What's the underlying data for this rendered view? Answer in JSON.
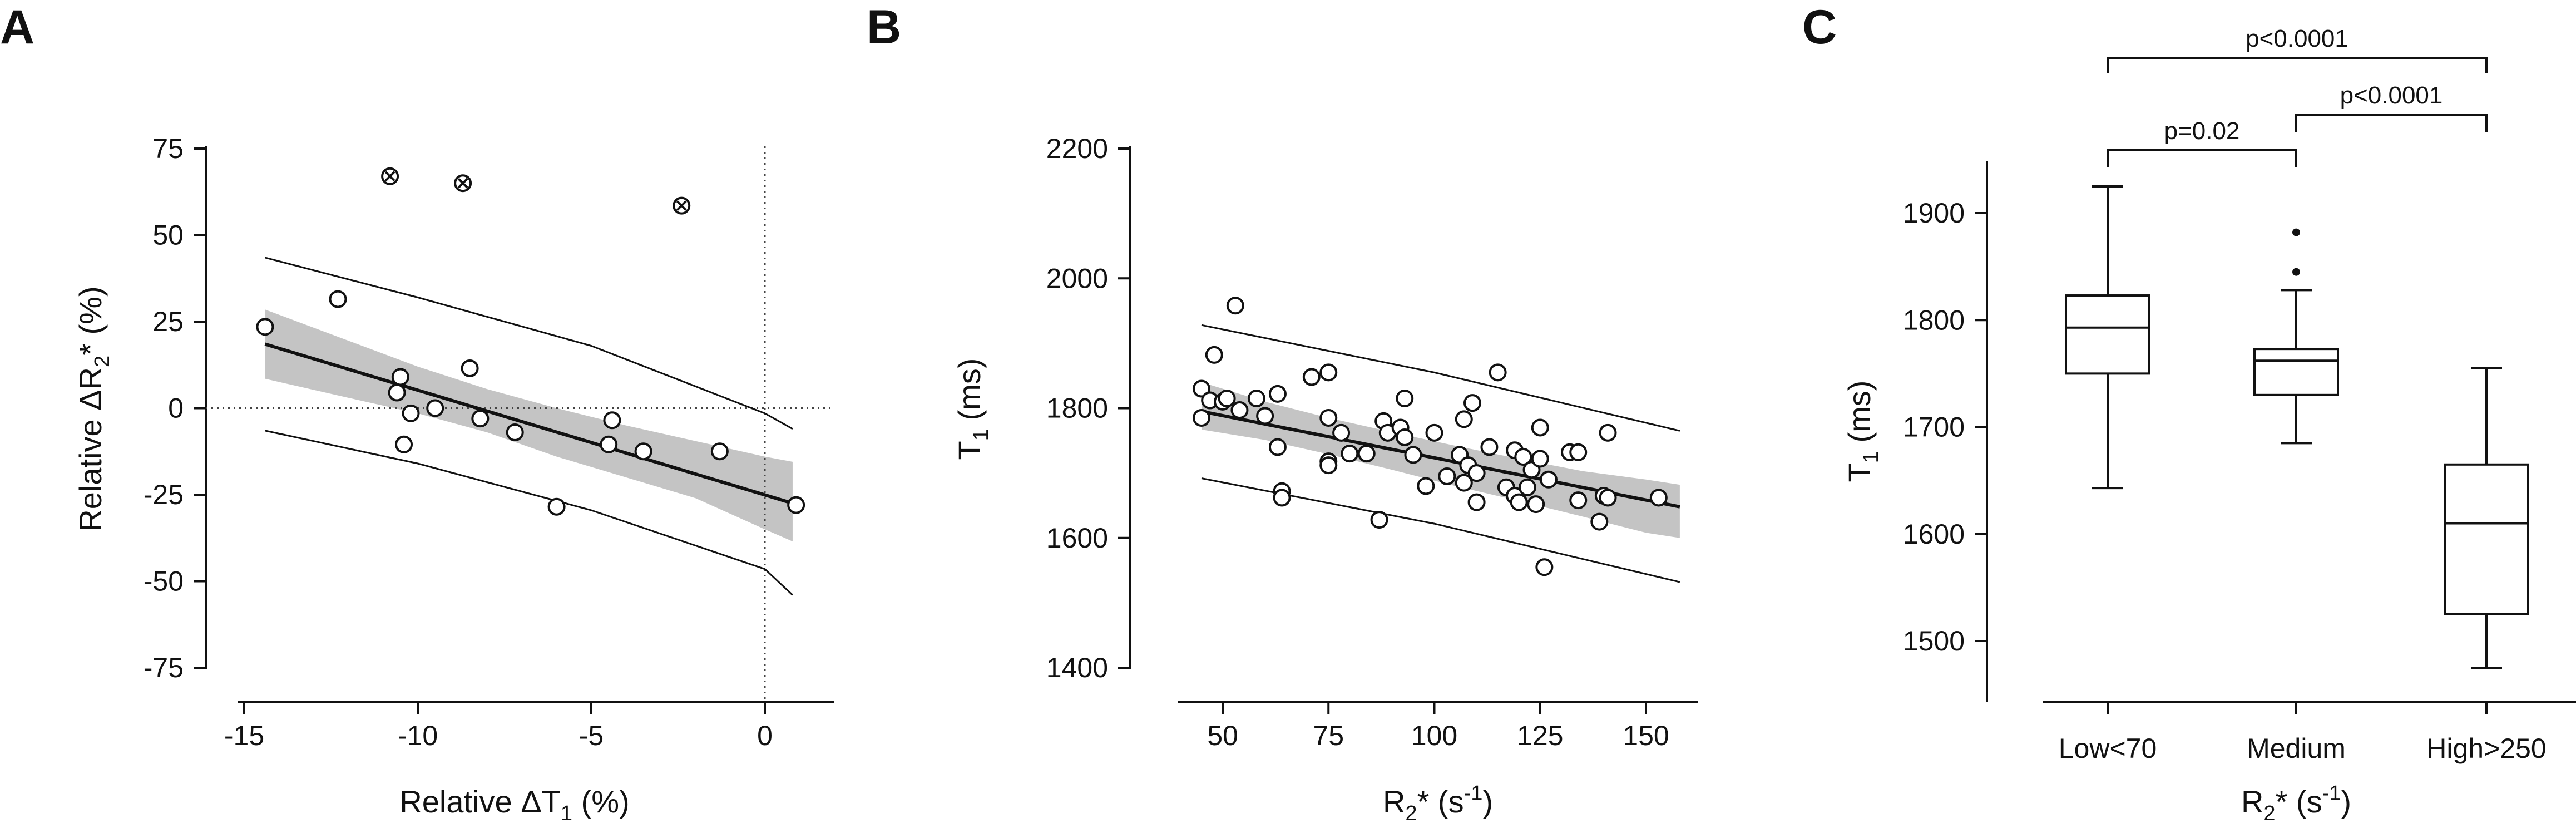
{
  "panels": [
    {
      "letter": "A",
      "x_ticks": [
        "-15",
        "-10",
        "-5",
        "0"
      ],
      "y_ticks": [
        "75",
        "50",
        "25",
        "0",
        "-25",
        "-50",
        "-75"
      ],
      "xlabel": {
        "pre": "Relative ΔT",
        "sub": "1",
        "post": " (%)"
      },
      "ylabel": {
        "pre": "Relative ΔR",
        "sub": "2",
        "post": "* (%)"
      }
    },
    {
      "letter": "B",
      "x_ticks": [
        "50",
        "75",
        "100",
        "125",
        "150"
      ],
      "y_ticks": [
        "2200",
        "2000",
        "1800",
        "1600",
        "1400"
      ],
      "xlabel": {
        "pre": "R",
        "sub": "2",
        "mid": "* (s",
        "sup": "-1",
        "post": ")"
      },
      "ylabel": {
        "pre": "T",
        "sub": "1",
        "post": " (ms)"
      }
    },
    {
      "letter": "C",
      "x_ticks": [
        "Low<70",
        "Medium",
        "High>250"
      ],
      "y_ticks": [
        "1900",
        "1800",
        "1700",
        "1600",
        "1500"
      ],
      "xlabel": {
        "pre": "R",
        "sub": "2",
        "mid": "* (s",
        "sup": "-1",
        "post": ")"
      },
      "ylabel": {
        "pre": "T",
        "sub": "1",
        "post": " (ms)"
      },
      "brackets": [
        {
          "label": "p=0.02"
        },
        {
          "label": "p<0.0001"
        },
        {
          "label": "p<0.0001"
        }
      ]
    }
  ],
  "chart_data": [
    {
      "type": "scatter",
      "panel": "A",
      "xlim": [
        -16,
        1.8
      ],
      "ylim": [
        -75,
        75
      ],
      "grid": false,
      "reference_lines": {
        "x": 0,
        "y": 0,
        "style": "dotted"
      },
      "points": [
        {
          "x": -14.4,
          "y": 23.5
        },
        {
          "x": -12.3,
          "y": 31.5
        },
        {
          "x": -10.5,
          "y": 9
        },
        {
          "x": -10.6,
          "y": 4.5
        },
        {
          "x": -10.2,
          "y": -1.5
        },
        {
          "x": -10.4,
          "y": -10.5
        },
        {
          "x": -9.5,
          "y": 0
        },
        {
          "x": -8.5,
          "y": 11.5
        },
        {
          "x": -8.2,
          "y": -3
        },
        {
          "x": -7.2,
          "y": -7
        },
        {
          "x": -6,
          "y": -28.5
        },
        {
          "x": -4.5,
          "y": -10.5
        },
        {
          "x": -4.4,
          "y": -3.5
        },
        {
          "x": -3.5,
          "y": -12.5
        },
        {
          "x": -1.3,
          "y": -12.5
        },
        {
          "x": 0.9,
          "y": -28
        }
      ],
      "excluded_points": [
        {
          "x": -10.8,
          "y": 67
        },
        {
          "x": -8.7,
          "y": 65
        },
        {
          "x": -2.4,
          "y": 58.5
        }
      ],
      "fit": {
        "x": [
          -14.4,
          0.8
        ],
        "y": [
          18.5,
          -27.5
        ]
      },
      "confidence_band": {
        "x": [
          -14.4,
          -12,
          -10,
          -8,
          -6,
          -4,
          -2,
          0,
          0.8
        ],
        "upper": [
          28.5,
          19.5,
          12,
          5.5,
          0,
          -5,
          -9.5,
          -14,
          -15.5
        ],
        "lower": [
          8.5,
          3,
          -1.5,
          -7,
          -14,
          -20,
          -26,
          -35,
          -38.5
        ]
      },
      "prediction_band": {
        "x": [
          -14.4,
          -10,
          -5,
          0,
          0.8
        ],
        "upper": [
          43.5,
          32,
          18,
          -1.5,
          -6
        ],
        "lower": [
          -6.5,
          -16,
          -29.5,
          -46.5,
          -54
        ]
      }
    },
    {
      "type": "scatter",
      "panel": "B",
      "xlim": [
        37,
        159
      ],
      "ylim": [
        1400,
        2200
      ],
      "grid": false,
      "points": [
        {
          "x": 45,
          "y": 1830
        },
        {
          "x": 45,
          "y": 1785
        },
        {
          "x": 47,
          "y": 1812
        },
        {
          "x": 48,
          "y": 1882
        },
        {
          "x": 50,
          "y": 1810
        },
        {
          "x": 51,
          "y": 1815
        },
        {
          "x": 53,
          "y": 1958
        },
        {
          "x": 54,
          "y": 1797
        },
        {
          "x": 58,
          "y": 1815
        },
        {
          "x": 60,
          "y": 1788
        },
        {
          "x": 63,
          "y": 1822
        },
        {
          "x": 63,
          "y": 1740
        },
        {
          "x": 64,
          "y": 1672
        },
        {
          "x": 64,
          "y": 1662
        },
        {
          "x": 71,
          "y": 1848
        },
        {
          "x": 75,
          "y": 1855
        },
        {
          "x": 75,
          "y": 1785
        },
        {
          "x": 75,
          "y": 1718
        },
        {
          "x": 75,
          "y": 1712
        },
        {
          "x": 78,
          "y": 1762
        },
        {
          "x": 80,
          "y": 1730
        },
        {
          "x": 84,
          "y": 1730
        },
        {
          "x": 87,
          "y": 1628
        },
        {
          "x": 88,
          "y": 1780
        },
        {
          "x": 89,
          "y": 1762
        },
        {
          "x": 92,
          "y": 1770
        },
        {
          "x": 93,
          "y": 1755
        },
        {
          "x": 93,
          "y": 1815
        },
        {
          "x": 95,
          "y": 1728
        },
        {
          "x": 98,
          "y": 1680
        },
        {
          "x": 100,
          "y": 1762
        },
        {
          "x": 103,
          "y": 1695
        },
        {
          "x": 106,
          "y": 1728
        },
        {
          "x": 107,
          "y": 1685
        },
        {
          "x": 107,
          "y": 1783
        },
        {
          "x": 108,
          "y": 1712
        },
        {
          "x": 109,
          "y": 1808
        },
        {
          "x": 110,
          "y": 1700
        },
        {
          "x": 110,
          "y": 1655
        },
        {
          "x": 113,
          "y": 1740
        },
        {
          "x": 115,
          "y": 1855
        },
        {
          "x": 117,
          "y": 1678
        },
        {
          "x": 119,
          "y": 1735
        },
        {
          "x": 119,
          "y": 1665
        },
        {
          "x": 120,
          "y": 1655
        },
        {
          "x": 121,
          "y": 1725
        },
        {
          "x": 122,
          "y": 1678
        },
        {
          "x": 123,
          "y": 1705
        },
        {
          "x": 124,
          "y": 1652
        },
        {
          "x": 125,
          "y": 1722
        },
        {
          "x": 125,
          "y": 1770
        },
        {
          "x": 126,
          "y": 1555
        },
        {
          "x": 127,
          "y": 1690
        },
        {
          "x": 132,
          "y": 1732
        },
        {
          "x": 134,
          "y": 1732
        },
        {
          "x": 134,
          "y": 1658
        },
        {
          "x": 139,
          "y": 1625
        },
        {
          "x": 140,
          "y": 1665
        },
        {
          "x": 141,
          "y": 1762
        },
        {
          "x": 141,
          "y": 1662
        },
        {
          "x": 153,
          "y": 1662
        }
      ],
      "fit": {
        "x": [
          45,
          158
        ],
        "y": [
          1795,
          1648
        ]
      },
      "confidence_band": {
        "x": [
          45,
          60,
          75,
          90,
          105,
          120,
          135,
          150,
          158
        ],
        "upper": [
          1840,
          1810,
          1785,
          1763,
          1742,
          1722,
          1703,
          1690,
          1682
        ],
        "lower": [
          1767,
          1751,
          1729,
          1705,
          1680,
          1657,
          1633,
          1608,
          1600
        ]
      },
      "prediction_band": {
        "x": [
          45,
          100,
          158
        ],
        "upper": [
          1928,
          1855,
          1765
        ],
        "lower": [
          1692,
          1622,
          1532
        ]
      }
    },
    {
      "type": "box",
      "panel": "C",
      "ylim": [
        1430,
        1955
      ],
      "categories": [
        "Low<70",
        "Medium",
        "High>250"
      ],
      "boxes": [
        {
          "whisker_low": 1643,
          "q1": 1750,
          "median": 1793,
          "q3": 1823,
          "whisker_high": 1925,
          "outliers": []
        },
        {
          "whisker_low": 1685,
          "q1": 1730,
          "median": 1762,
          "q3": 1773,
          "whisker_high": 1828,
          "outliers": [
            1845,
            1882
          ]
        },
        {
          "whisker_low": 1475,
          "q1": 1525,
          "median": 1610,
          "q3": 1665,
          "whisker_high": 1755,
          "outliers": []
        }
      ],
      "comparisons": [
        {
          "pair": [
            0,
            1
          ],
          "p": "p=0.02"
        },
        {
          "pair": [
            0,
            2
          ],
          "p": "p<0.0001"
        },
        {
          "pair": [
            1,
            2
          ],
          "p": "p<0.0001"
        }
      ]
    }
  ]
}
